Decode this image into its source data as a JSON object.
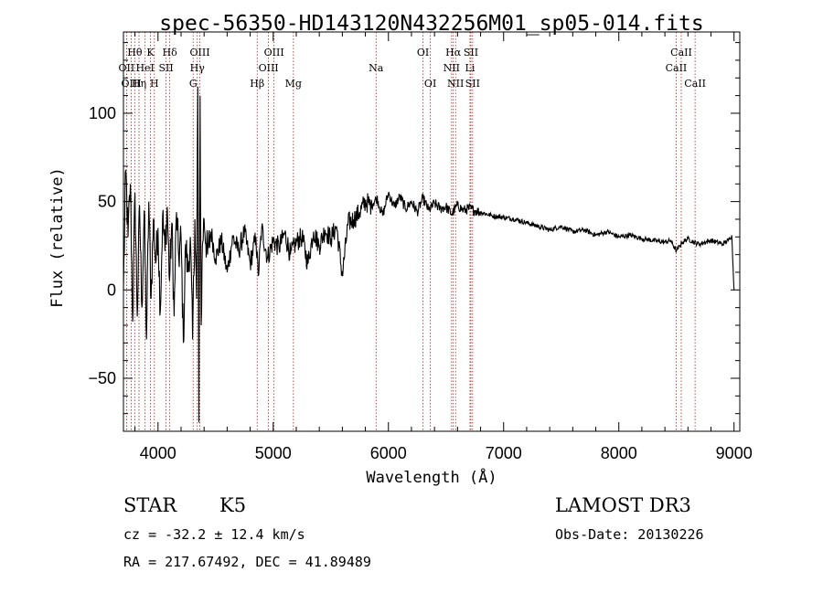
{
  "chart_data": {
    "type": "line",
    "title": "spec-56350-HD143120N432256M01_sp05-014.fits",
    "xlabel": "Wavelength (Å)",
    "ylabel": "Flux (relative)",
    "xlim": [
      3700,
      9050
    ],
    "ylim": [
      -80,
      146
    ],
    "xticks": [
      4000,
      5000,
      6000,
      7000,
      8000,
      9000
    ],
    "yticks": [
      -50,
      0,
      50,
      100
    ],
    "series": [
      {
        "name": "spectrum",
        "x": [
          3700,
          3720,
          3740,
          3760,
          3780,
          3800,
          3820,
          3840,
          3860,
          3880,
          3900,
          3920,
          3940,
          3960,
          3980,
          4000,
          4020,
          4040,
          4060,
          4080,
          4100,
          4120,
          4140,
          4160,
          4180,
          4200,
          4220,
          4240,
          4260,
          4280,
          4300,
          4320,
          4335,
          4345,
          4355,
          4365,
          4375,
          4385,
          4400,
          4430,
          4460,
          4500,
          4550,
          4600,
          4650,
          4700,
          4750,
          4800,
          4850,
          4870,
          4900,
          4950,
          5000,
          5050,
          5100,
          5150,
          5200,
          5250,
          5300,
          5350,
          5400,
          5450,
          5500,
          5550,
          5600,
          5650,
          5700,
          5750,
          5800,
          5850,
          5900,
          5950,
          6000,
          6050,
          6100,
          6150,
          6200,
          6250,
          6300,
          6350,
          6400,
          6450,
          6500,
          6550,
          6600,
          6650,
          6700,
          6750,
          6800,
          6900,
          7000,
          7100,
          7200,
          7300,
          7400,
          7500,
          7600,
          7700,
          7800,
          7900,
          8000,
          8100,
          8200,
          8300,
          8400,
          8450,
          8500,
          8550,
          8600,
          8650,
          8700,
          8800,
          8900,
          8950,
          8980,
          9000
        ],
        "y": [
          0,
          68,
          30,
          60,
          -18,
          55,
          -15,
          48,
          -10,
          45,
          -28,
          50,
          -5,
          40,
          15,
          35,
          -12,
          42,
          22,
          47,
          5,
          38,
          -15,
          44,
          18,
          30,
          -30,
          26,
          10,
          30,
          -28,
          40,
          -5,
          115,
          -75,
          110,
          -20,
          25,
          40,
          20,
          33,
          18,
          28,
          10,
          30,
          22,
          33,
          15,
          30,
          8,
          35,
          18,
          28,
          24,
          32,
          20,
          27,
          30,
          15,
          33,
          25,
          34,
          29,
          36,
          8,
          38,
          40,
          44,
          50,
          48,
          52,
          42,
          55,
          47,
          53,
          46,
          50,
          44,
          52,
          45,
          49,
          46,
          47,
          43,
          48,
          45,
          46,
          45,
          44,
          42,
          41,
          40,
          38,
          36,
          34,
          36,
          33,
          34,
          31,
          33,
          30,
          31,
          29,
          28,
          27,
          28,
          22,
          27,
          29,
          27,
          26,
          28,
          26,
          28,
          31,
          0
        ]
      }
    ],
    "emission_lines": [
      {
        "label": "Hθ",
        "x": 3798,
        "row": 1
      },
      {
        "label": "OII",
        "x": 3727,
        "row": 2
      },
      {
        "label": "OIII",
        "x": 3768,
        "row": 3
      },
      {
        "label": "Hη",
        "x": 3835,
        "row": 3
      },
      {
        "label": "HeI",
        "x": 3888,
        "row": 2
      },
      {
        "label": "K",
        "x": 3934,
        "row": 1
      },
      {
        "label": "H",
        "x": 3968,
        "row": 3
      },
      {
        "label": "SII",
        "x": 4070,
        "row": 2
      },
      {
        "label": "Hδ",
        "x": 4102,
        "row": 1
      },
      {
        "label": "OIII",
        "x": 4363,
        "row": 1
      },
      {
        "label": "Hγ",
        "x": 4341,
        "row": 2
      },
      {
        "label": "G",
        "x": 4305,
        "row": 3
      },
      {
        "label": "Hβ",
        "x": 4861,
        "row": 3
      },
      {
        "label": "OIII",
        "x": 5007,
        "row": 1
      },
      {
        "label": "OIII",
        "x": 4959,
        "row": 2
      },
      {
        "label": "Mg",
        "x": 5175,
        "row": 3
      },
      {
        "label": "Na",
        "x": 5893,
        "row": 2
      },
      {
        "label": "OI",
        "x": 6300,
        "row": 1
      },
      {
        "label": "OI",
        "x": 6364,
        "row": 3
      },
      {
        "label": "Hα",
        "x": 6563,
        "row": 1
      },
      {
        "label": "NII",
        "x": 6548,
        "row": 2
      },
      {
        "label": "NII",
        "x": 6583,
        "row": 3
      },
      {
        "label": "SII",
        "x": 6716,
        "row": 1
      },
      {
        "label": "Li",
        "x": 6708,
        "row": 2
      },
      {
        "label": "SII",
        "x": 6731,
        "row": 3
      },
      {
        "label": "CaII",
        "x": 8542,
        "row": 1
      },
      {
        "label": "CaII",
        "x": 8498,
        "row": 2
      },
      {
        "label": "CaII",
        "x": 8662,
        "row": 3
      }
    ]
  },
  "info": {
    "object_class": "STAR",
    "subclass": "K5",
    "survey": "LAMOST DR3",
    "cz": "cz = -32.2 ± 12.4 km/s",
    "obs_date": "Obs-Date: 20130226",
    "coords": "RA = 217.67492, DEC =  41.89489"
  },
  "colors": {
    "spectrum": "#000000",
    "lines": "#b22222",
    "axis": "#000000"
  }
}
